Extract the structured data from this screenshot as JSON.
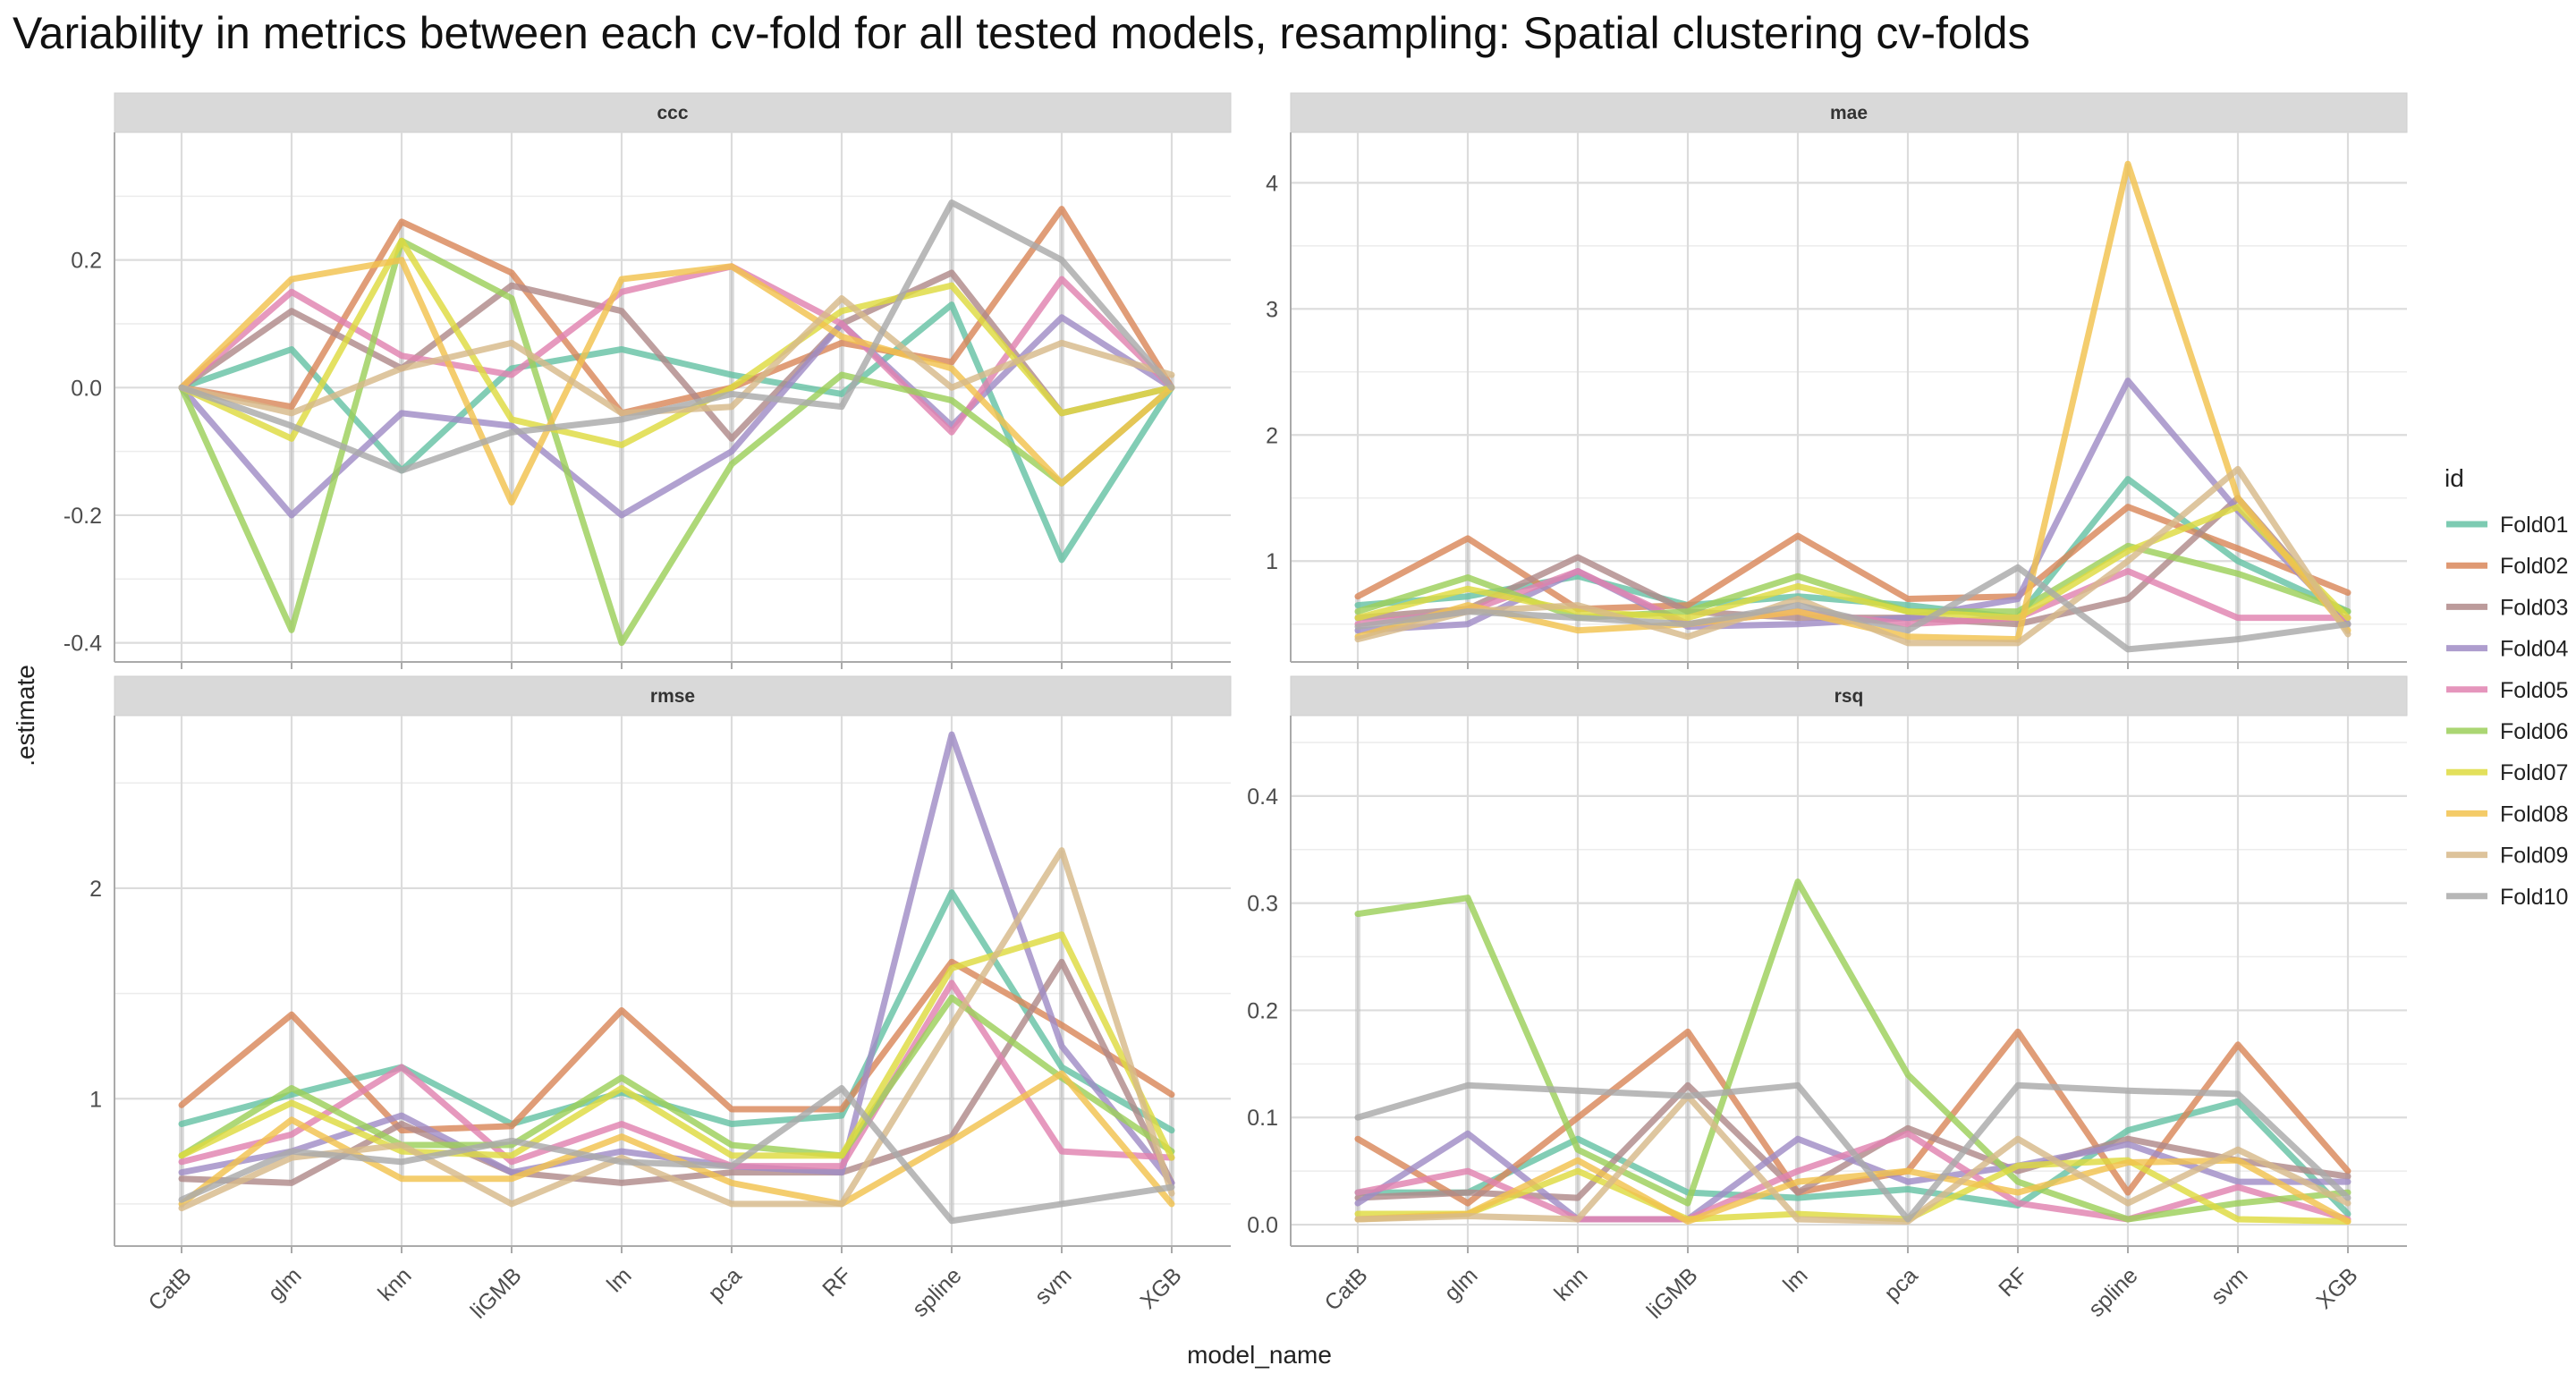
{
  "title": "Variability in metrics between each cv-fold for all tested models, resampling: Spatial clustering cv-folds",
  "chart_data": {
    "type": "line",
    "title": "Variability in metrics between each cv-fold for all tested models, resampling: Spatial clustering cv-folds",
    "xlabel": "model_name",
    "ylabel": ".estimate",
    "legend_title": "id",
    "legend_position": "right",
    "grid": true,
    "categories": [
      "CatB",
      "glm",
      "knn",
      "liGMB",
      "lm",
      "pca",
      "RF",
      "spline",
      "svm",
      "XGB"
    ],
    "folds": [
      "Fold01",
      "Fold02",
      "Fold03",
      "Fold04",
      "Fold05",
      "Fold06",
      "Fold07",
      "Fold08",
      "Fold09",
      "Fold10"
    ],
    "colors": [
      "#66c2a5",
      "#d9875a",
      "#b08a8a",
      "#a08cc6",
      "#e083b0",
      "#9ccf5a",
      "#dedb40",
      "#f2c24e",
      "#d7b98a",
      "#aaaaaa"
    ],
    "panels": [
      {
        "metric": "ccc",
        "ylim": [
          -0.43,
          0.4
        ],
        "yticks": [
          -0.4,
          -0.2,
          0.0,
          0.2
        ],
        "yticklabels": [
          "-0.4",
          "-0.2",
          "0.0",
          "0.2"
        ],
        "series": [
          {
            "name": "Fold01",
            "values": [
              0.0,
              0.06,
              -0.13,
              0.03,
              0.06,
              0.02,
              -0.01,
              0.13,
              -0.27,
              0.0
            ]
          },
          {
            "name": "Fold02",
            "values": [
              0.0,
              -0.03,
              0.26,
              0.18,
              -0.04,
              0.0,
              0.07,
              0.04,
              0.28,
              0.0
            ]
          },
          {
            "name": "Fold03",
            "values": [
              0.0,
              0.12,
              0.03,
              0.16,
              0.12,
              -0.08,
              0.1,
              0.18,
              -0.04,
              0.0
            ]
          },
          {
            "name": "Fold04",
            "values": [
              0.0,
              -0.2,
              -0.04,
              -0.06,
              -0.2,
              -0.1,
              0.1,
              -0.06,
              0.11,
              0.0
            ]
          },
          {
            "name": "Fold05",
            "values": [
              0.0,
              0.15,
              0.05,
              0.02,
              0.15,
              0.19,
              0.1,
              -0.07,
              0.17,
              0.0
            ]
          },
          {
            "name": "Fold06",
            "values": [
              0.0,
              -0.38,
              0.23,
              0.14,
              -0.4,
              -0.12,
              0.02,
              -0.02,
              -0.15,
              0.0
            ]
          },
          {
            "name": "Fold07",
            "values": [
              0.0,
              -0.08,
              0.23,
              -0.05,
              -0.09,
              0.0,
              0.12,
              0.16,
              -0.04,
              0.0
            ]
          },
          {
            "name": "Fold08",
            "values": [
              0.0,
              0.17,
              0.2,
              -0.18,
              0.17,
              0.19,
              0.08,
              0.03,
              -0.15,
              0.0
            ]
          },
          {
            "name": "Fold09",
            "values": [
              0.0,
              -0.04,
              0.03,
              0.07,
              -0.04,
              -0.03,
              0.14,
              0.0,
              0.07,
              0.02
            ]
          },
          {
            "name": "Fold10",
            "values": [
              0.0,
              -0.06,
              -0.13,
              -0.07,
              -0.05,
              -0.01,
              -0.03,
              0.29,
              0.2,
              0.0
            ]
          }
        ]
      },
      {
        "metric": "mae",
        "ylim": [
          0.2,
          4.4
        ],
        "yticks": [
          1,
          2,
          3,
          4
        ],
        "yticklabels": [
          "1",
          "2",
          "3",
          "4"
        ],
        "series": [
          {
            "name": "Fold01",
            "values": [
              0.65,
              0.72,
              0.88,
              0.65,
              0.72,
              0.65,
              0.55,
              1.65,
              1.0,
              0.6
            ]
          },
          {
            "name": "Fold02",
            "values": [
              0.72,
              1.18,
              0.62,
              0.65,
              1.2,
              0.7,
              0.72,
              1.43,
              1.1,
              0.75
            ]
          },
          {
            "name": "Fold03",
            "values": [
              0.55,
              0.62,
              1.03,
              0.6,
              0.55,
              0.55,
              0.5,
              0.7,
              1.5,
              0.5
            ]
          },
          {
            "name": "Fold04",
            "values": [
              0.45,
              0.5,
              0.92,
              0.48,
              0.5,
              0.55,
              0.7,
              2.43,
              1.4,
              0.5
            ]
          },
          {
            "name": "Fold05",
            "values": [
              0.5,
              0.6,
              0.92,
              0.5,
              0.6,
              0.5,
              0.55,
              0.92,
              0.55,
              0.55
            ]
          },
          {
            "name": "Fold06",
            "values": [
              0.6,
              0.87,
              0.55,
              0.6,
              0.88,
              0.6,
              0.6,
              1.12,
              0.9,
              0.6
            ]
          },
          {
            "name": "Fold07",
            "values": [
              0.55,
              0.78,
              0.6,
              0.55,
              0.8,
              0.6,
              0.55,
              1.08,
              1.43,
              0.55
            ]
          },
          {
            "name": "Fold08",
            "values": [
              0.4,
              0.65,
              0.45,
              0.5,
              0.6,
              0.4,
              0.38,
              4.15,
              1.5,
              0.45
            ]
          },
          {
            "name": "Fold09",
            "values": [
              0.38,
              0.6,
              0.65,
              0.4,
              0.7,
              0.35,
              0.35,
              1.0,
              1.73,
              0.42
            ]
          },
          {
            "name": "Fold10",
            "values": [
              0.48,
              0.6,
              0.55,
              0.5,
              0.65,
              0.45,
              0.95,
              0.3,
              0.38,
              0.5
            ]
          }
        ]
      },
      {
        "metric": "rmse",
        "ylim": [
          0.3,
          2.82
        ],
        "yticks": [
          1,
          2
        ],
        "yticklabels": [
          "1",
          "2"
        ],
        "series": [
          {
            "name": "Fold01",
            "values": [
              0.88,
              1.02,
              1.15,
              0.88,
              1.03,
              0.88,
              0.92,
              1.98,
              1.15,
              0.85
            ]
          },
          {
            "name": "Fold02",
            "values": [
              0.97,
              1.4,
              0.85,
              0.87,
              1.42,
              0.95,
              0.95,
              1.65,
              1.35,
              1.02
            ]
          },
          {
            "name": "Fold03",
            "values": [
              0.62,
              0.6,
              0.88,
              0.65,
              0.6,
              0.65,
              0.65,
              0.82,
              1.65,
              0.6
            ]
          },
          {
            "name": "Fold04",
            "values": [
              0.65,
              0.75,
              0.92,
              0.65,
              0.75,
              0.68,
              0.65,
              2.73,
              1.25,
              0.6
            ]
          },
          {
            "name": "Fold05",
            "values": [
              0.7,
              0.83,
              1.15,
              0.7,
              0.88,
              0.68,
              0.68,
              1.55,
              0.75,
              0.72
            ]
          },
          {
            "name": "Fold06",
            "values": [
              0.73,
              1.05,
              0.78,
              0.78,
              1.1,
              0.78,
              0.73,
              1.48,
              1.1,
              0.75
            ]
          },
          {
            "name": "Fold07",
            "values": [
              0.73,
              0.98,
              0.75,
              0.73,
              1.05,
              0.73,
              0.73,
              1.62,
              1.78,
              0.72
            ]
          },
          {
            "name": "Fold08",
            "values": [
              0.5,
              0.9,
              0.62,
              0.62,
              0.82,
              0.6,
              0.5,
              0.8,
              1.12,
              0.5
            ]
          },
          {
            "name": "Fold09",
            "values": [
              0.48,
              0.72,
              0.78,
              0.5,
              0.72,
              0.5,
              0.5,
              1.35,
              2.18,
              0.55
            ]
          },
          {
            "name": "Fold10",
            "values": [
              0.52,
              0.75,
              0.7,
              0.8,
              0.7,
              0.68,
              1.05,
              0.42,
              0.5,
              0.58
            ]
          }
        ]
      },
      {
        "metric": "rsq",
        "ylim": [
          -0.02,
          0.475
        ],
        "yticks": [
          0.0,
          0.1,
          0.2,
          0.3,
          0.4
        ],
        "yticklabels": [
          "0.0",
          "0.1",
          "0.2",
          "0.3",
          "0.4"
        ],
        "series": [
          {
            "name": "Fold01",
            "values": [
              0.03,
              0.03,
              0.08,
              0.03,
              0.025,
              0.033,
              0.018,
              0.088,
              0.115,
              0.01
            ]
          },
          {
            "name": "Fold02",
            "values": [
              0.08,
              0.02,
              0.1,
              0.18,
              0.03,
              0.05,
              0.18,
              0.03,
              0.168,
              0.05
            ]
          },
          {
            "name": "Fold03",
            "values": [
              0.025,
              0.03,
              0.025,
              0.13,
              0.03,
              0.09,
              0.05,
              0.08,
              0.06,
              0.045
            ]
          },
          {
            "name": "Fold04",
            "values": [
              0.02,
              0.085,
              0.005,
              0.005,
              0.08,
              0.04,
              0.055,
              0.075,
              0.04,
              0.04
            ]
          },
          {
            "name": "Fold05",
            "values": [
              0.03,
              0.05,
              0.005,
              0.005,
              0.05,
              0.085,
              0.02,
              0.005,
              0.035,
              0.005
            ]
          },
          {
            "name": "Fold06",
            "values": [
              0.29,
              0.305,
              0.07,
              0.02,
              0.32,
              0.14,
              0.04,
              0.005,
              0.02,
              0.03
            ]
          },
          {
            "name": "Fold07",
            "values": [
              0.01,
              0.01,
              0.05,
              0.005,
              0.01,
              0.005,
              0.055,
              0.06,
              0.005,
              0.003
            ]
          },
          {
            "name": "Fold08",
            "values": [
              0.005,
              0.01,
              0.06,
              0.003,
              0.04,
              0.05,
              0.03,
              0.058,
              0.06,
              0.003
            ]
          },
          {
            "name": "Fold09",
            "values": [
              0.005,
              0.008,
              0.005,
              0.12,
              0.005,
              0.003,
              0.08,
              0.02,
              0.07,
              0.02
            ]
          },
          {
            "name": "Fold10",
            "values": [
              0.1,
              0.13,
              0.125,
              0.12,
              0.13,
              0.005,
              0.13,
              0.125,
              0.122,
              0.025
            ]
          }
        ]
      }
    ]
  }
}
